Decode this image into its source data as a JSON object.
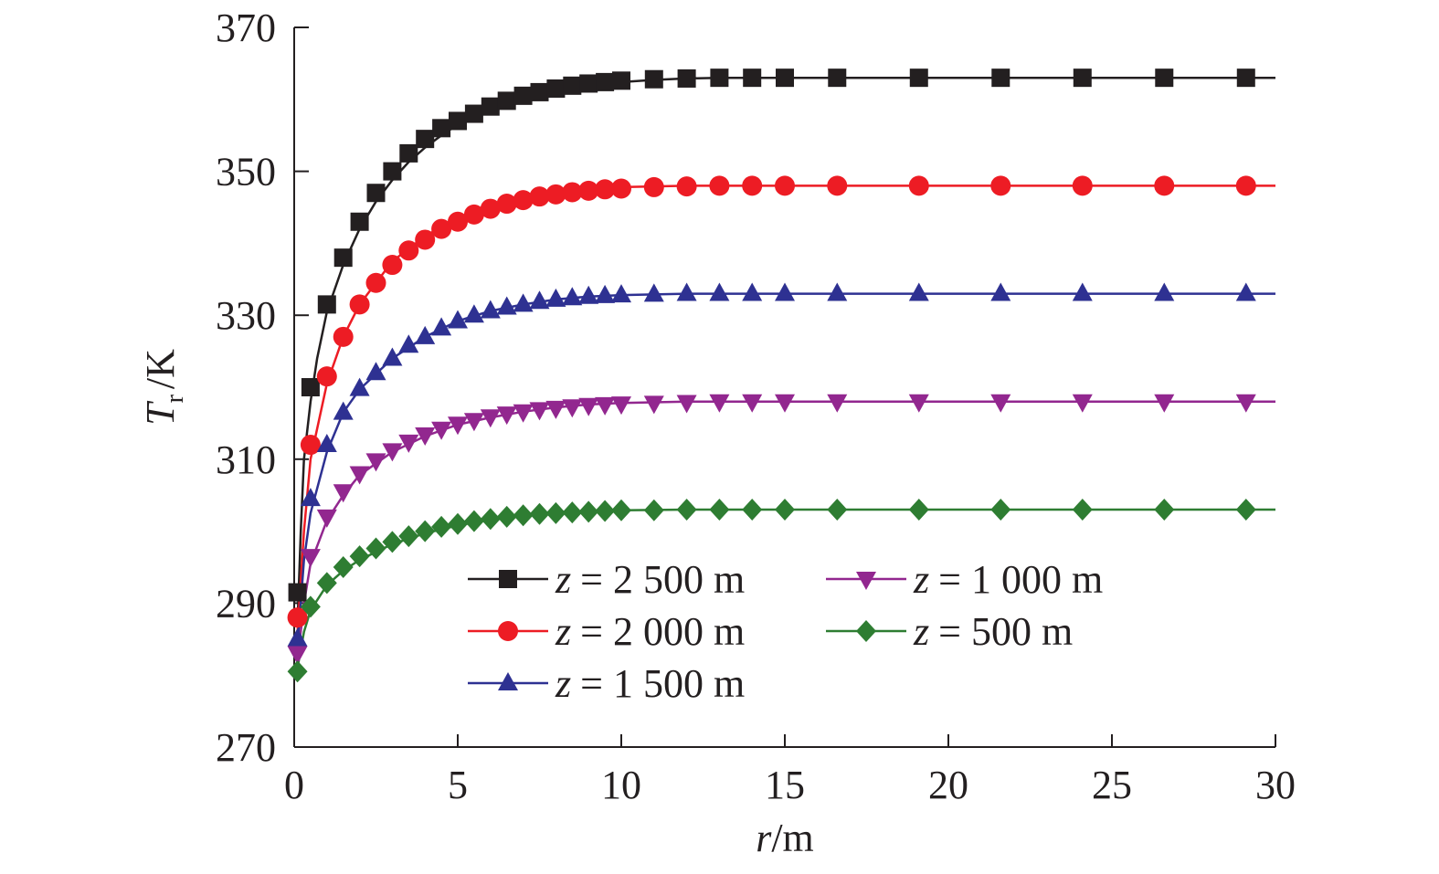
{
  "chart_data": {
    "type": "line",
    "xlabel": {
      "var": "r",
      "unit": "/m"
    },
    "ylabel": {
      "var": "T",
      "sub": "r",
      "unit": "/K"
    },
    "xlim": [
      0,
      30
    ],
    "ylim": [
      270,
      370
    ],
    "xticks": [
      "0",
      "5",
      "10",
      "15",
      "20",
      "25",
      "30"
    ],
    "yticks": [
      "270",
      "290",
      "310",
      "330",
      "350",
      "370"
    ],
    "grid": false,
    "legend_position": "bottom-right",
    "legend_var": "z",
    "series": [
      {
        "name": "= 2 500 m",
        "color": "#231f20",
        "marker": "square",
        "line": [
          [
            0.1,
            287
          ],
          [
            0.2,
            300
          ],
          [
            0.3,
            310
          ],
          [
            0.5,
            318
          ],
          [
            0.7,
            324
          ],
          [
            1.0,
            330.5
          ],
          [
            1.5,
            337
          ],
          [
            2,
            342
          ],
          [
            2.5,
            345.8
          ],
          [
            3,
            348.8
          ],
          [
            3.5,
            351.3
          ],
          [
            4,
            353.3
          ],
          [
            4.5,
            355
          ],
          [
            5,
            356.5
          ],
          [
            6,
            358.7
          ],
          [
            7,
            360.2
          ],
          [
            8,
            361.2
          ],
          [
            9,
            361.9
          ],
          [
            10,
            362.4
          ],
          [
            11,
            362.7
          ],
          [
            12,
            362.9
          ],
          [
            13,
            363
          ],
          [
            15,
            363
          ],
          [
            30,
            363
          ]
        ],
        "x": [
          0.1,
          0.5,
          1.0,
          1.5,
          2.0,
          2.5,
          3.0,
          3.5,
          4.0,
          4.5,
          5.0,
          5.5,
          6.0,
          6.5,
          7.0,
          7.5,
          8.0,
          8.5,
          9.0,
          9.5,
          10.0,
          11.0,
          12.0,
          13.0,
          14.0,
          15.0,
          16.6,
          19.1,
          21.6,
          24.1,
          26.6,
          29.1
        ],
        "y": [
          291.5,
          320,
          331.5,
          338,
          343,
          347,
          350,
          352.5,
          354.5,
          356,
          357,
          358,
          359,
          359.8,
          360.5,
          361,
          361.5,
          361.9,
          362.2,
          362.4,
          362.6,
          362.8,
          362.9,
          363,
          363,
          363,
          363,
          363,
          363,
          363,
          363,
          363
        ]
      },
      {
        "name": "= 2 000 m",
        "color": "#ed1c24",
        "marker": "circle",
        "line": [
          [
            0.1,
            286
          ],
          [
            0.3,
            300
          ],
          [
            0.5,
            310
          ],
          [
            1.0,
            320.5
          ],
          [
            1.5,
            327
          ],
          [
            2,
            331.5
          ],
          [
            3,
            337.5
          ],
          [
            4,
            341
          ],
          [
            5,
            343.5
          ],
          [
            6,
            345
          ],
          [
            7,
            346.2
          ],
          [
            8,
            347
          ],
          [
            9,
            347.5
          ],
          [
            10,
            347.8
          ],
          [
            12,
            348
          ],
          [
            30,
            348
          ]
        ],
        "x": [
          0.1,
          0.5,
          1.0,
          1.5,
          2.0,
          2.5,
          3.0,
          3.5,
          4.0,
          4.5,
          5.0,
          5.5,
          6.0,
          6.5,
          7.0,
          7.5,
          8.0,
          8.5,
          9.0,
          9.5,
          10.0,
          11.0,
          12.0,
          13.0,
          14.0,
          15.0,
          16.6,
          19.1,
          21.6,
          24.1,
          26.6,
          29.1
        ],
        "y": [
          288,
          312,
          321.5,
          327,
          331.5,
          334.5,
          337,
          339,
          340.5,
          342,
          343,
          344,
          344.8,
          345.5,
          346,
          346.5,
          346.8,
          347.1,
          347.3,
          347.5,
          347.6,
          347.8,
          347.9,
          348,
          348,
          348,
          348,
          348,
          348,
          348,
          348,
          348
        ]
      },
      {
        "name": "= 1 500 m",
        "color": "#2e3192",
        "marker": "triangle-up",
        "line": [
          [
            0.1,
            284
          ],
          [
            0.3,
            296
          ],
          [
            0.5,
            302.5
          ],
          [
            1.0,
            311
          ],
          [
            1.5,
            316.5
          ],
          [
            2,
            319.7
          ],
          [
            3,
            324
          ],
          [
            4,
            327
          ],
          [
            5,
            329.2
          ],
          [
            6,
            330.6
          ],
          [
            7,
            331.5
          ],
          [
            8,
            332.2
          ],
          [
            9,
            332.6
          ],
          [
            10,
            332.8
          ],
          [
            12,
            333
          ],
          [
            30,
            333
          ]
        ],
        "x": [
          0.1,
          0.5,
          1.0,
          1.5,
          2.0,
          2.5,
          3.0,
          3.5,
          4.0,
          4.5,
          5.0,
          5.5,
          6.0,
          6.5,
          7.0,
          7.5,
          8.0,
          8.5,
          9.0,
          9.5,
          10.0,
          11.0,
          12.0,
          13.0,
          14.0,
          15.0,
          16.6,
          19.1,
          21.6,
          24.1,
          26.6,
          29.1
        ],
        "y": [
          285,
          304.5,
          312,
          316.5,
          319.8,
          322,
          324,
          325.8,
          327,
          328.2,
          329.2,
          330,
          330.6,
          331.1,
          331.5,
          331.9,
          332.2,
          332.4,
          332.6,
          332.7,
          332.8,
          332.9,
          333,
          333,
          333,
          333,
          333,
          333,
          333,
          333,
          333,
          333
        ]
      },
      {
        "name": "= 1 000 m",
        "color": "#92278f",
        "marker": "triangle-down",
        "line": [
          [
            0.1,
            282
          ],
          [
            0.3,
            290
          ],
          [
            0.5,
            295.5
          ],
          [
            1.0,
            301.5
          ],
          [
            1.5,
            305
          ],
          [
            2,
            307.8
          ],
          [
            3,
            311
          ],
          [
            4,
            313.2
          ],
          [
            5,
            314.8
          ],
          [
            6,
            315.8
          ],
          [
            7,
            316.6
          ],
          [
            8,
            317.2
          ],
          [
            9,
            317.6
          ],
          [
            10,
            317.8
          ],
          [
            12,
            318
          ],
          [
            30,
            318
          ]
        ],
        "x": [
          0.1,
          0.5,
          1.0,
          1.5,
          2.0,
          2.5,
          3.0,
          3.5,
          4.0,
          4.5,
          5.0,
          5.5,
          6.0,
          6.5,
          7.0,
          7.5,
          8.0,
          8.5,
          9.0,
          9.5,
          10.0,
          11.0,
          12.0,
          13.0,
          14.0,
          15.0,
          16.6,
          19.1,
          21.6,
          24.1,
          26.6,
          29.1
        ],
        "y": [
          283,
          296.5,
          302,
          305.5,
          308,
          309.8,
          311.2,
          312.4,
          313.4,
          314.2,
          314.9,
          315.4,
          315.9,
          316.3,
          316.6,
          316.9,
          317.1,
          317.3,
          317.5,
          317.6,
          317.7,
          317.8,
          317.9,
          318,
          318,
          318,
          318,
          318,
          318,
          318,
          318,
          318
        ]
      },
      {
        "name": "= 500 m",
        "color": "#2e7d32",
        "marker": "diamond",
        "line": [
          [
            0.1,
            281
          ],
          [
            0.3,
            286
          ],
          [
            0.5,
            289
          ],
          [
            1.0,
            292.5
          ],
          [
            1.5,
            294.5
          ],
          [
            2,
            296
          ],
          [
            3,
            298.2
          ],
          [
            4,
            299.7
          ],
          [
            5,
            300.8
          ],
          [
            6,
            301.6
          ],
          [
            7,
            302.1
          ],
          [
            8,
            302.5
          ],
          [
            9,
            302.7
          ],
          [
            10,
            302.9
          ],
          [
            12,
            303
          ],
          [
            30,
            303
          ]
        ],
        "x": [
          0.1,
          0.5,
          1.0,
          1.5,
          2.0,
          2.5,
          3.0,
          3.5,
          4.0,
          4.5,
          5.0,
          5.5,
          6.0,
          6.5,
          7.0,
          7.5,
          8.0,
          8.5,
          9.0,
          9.5,
          10.0,
          11.0,
          12.0,
          13.0,
          14.0,
          15.0,
          16.6,
          19.1,
          21.6,
          24.1,
          26.6,
          29.1
        ],
        "y": [
          280.5,
          289.5,
          292.8,
          295,
          296.5,
          297.6,
          298.5,
          299.3,
          300,
          300.6,
          301,
          301.4,
          301.7,
          302,
          302.2,
          302.4,
          302.5,
          302.6,
          302.7,
          302.8,
          302.9,
          302.9,
          303,
          303,
          303,
          303,
          303,
          303,
          303,
          303,
          303,
          303
        ]
      }
    ]
  }
}
